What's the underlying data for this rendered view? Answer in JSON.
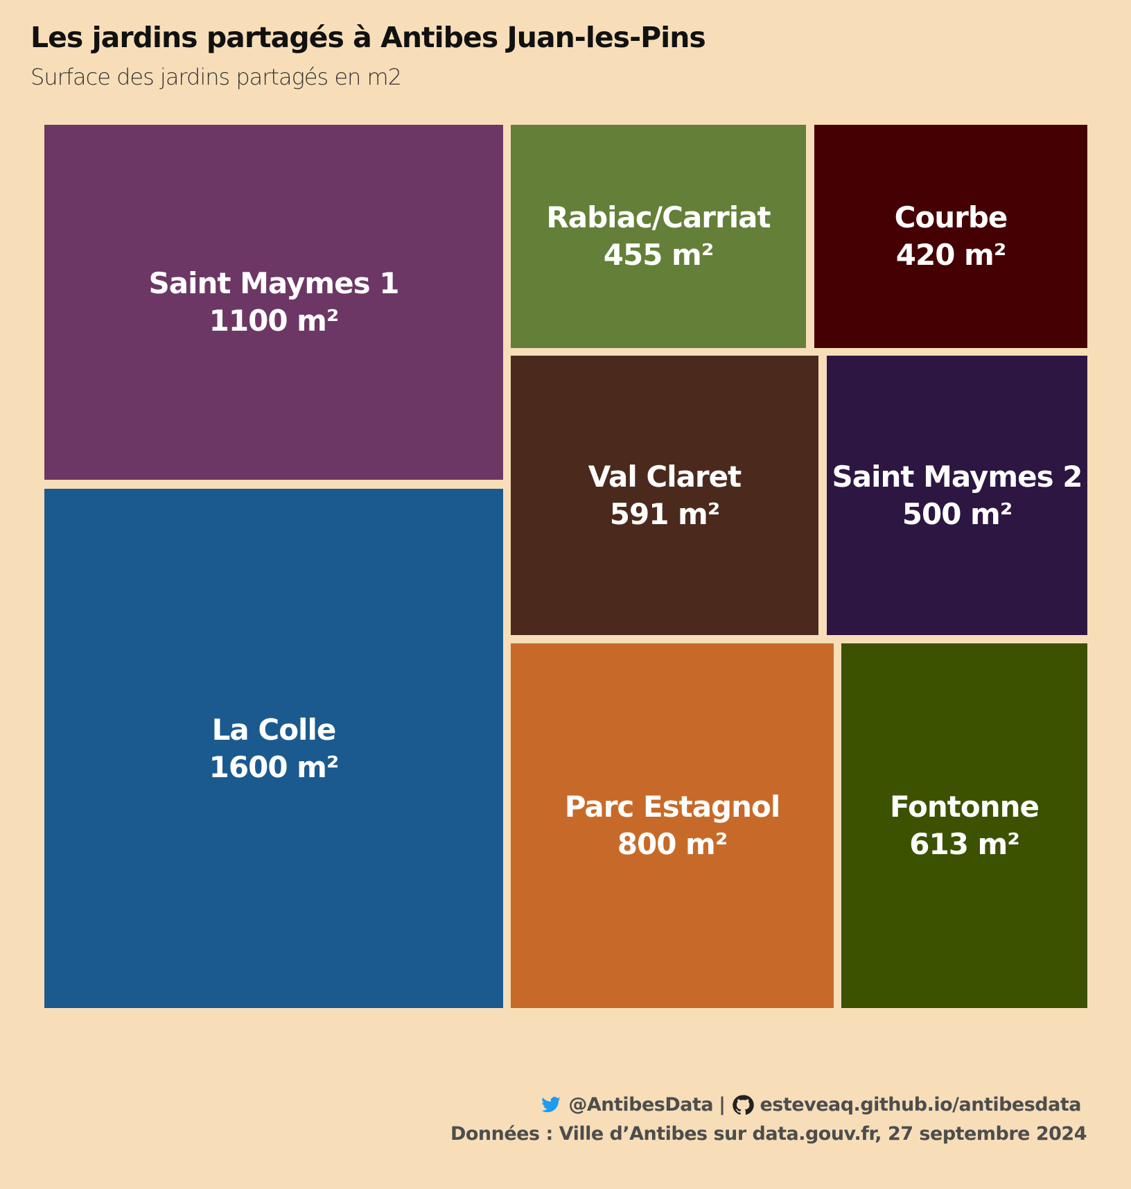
{
  "header": {
    "title": "Les jardins partagés à Antibes Juan-les-Pins",
    "subtitle": "Surface des jardins partagés en m2"
  },
  "chart_data": {
    "type": "treemap",
    "title": "Les jardins partagés à Antibes Juan-les-Pins",
    "subtitle": "Surface des jardins partagés en m2",
    "unit": "m²",
    "items": [
      {
        "name": "La Colle",
        "value": 1600,
        "label": "1600 m²",
        "color": "#1b5a8f"
      },
      {
        "name": "Saint Maymes 1",
        "value": 1100,
        "label": "1100 m²",
        "color": "#6d3765"
      },
      {
        "name": "Parc Estagnol",
        "value": 800,
        "label": "800 m²",
        "color": "#c76a29"
      },
      {
        "name": "Fontonne",
        "value": 613,
        "label": "613 m²",
        "color": "#3c5200"
      },
      {
        "name": "Val Claret",
        "value": 591,
        "label": "591 m²",
        "color": "#4b2a1d"
      },
      {
        "name": "Saint Maymes 2",
        "value": 500,
        "label": "500 m²",
        "color": "#2d1642"
      },
      {
        "name": "Rabiac/Carriat",
        "value": 455,
        "label": "455 m²",
        "color": "#647f38"
      },
      {
        "name": "Courbe",
        "value": 420,
        "label": "420 m²",
        "color": "#450003"
      }
    ]
  },
  "footer": {
    "twitter_icon": "twitter-icon",
    "twitter": "@AntibesData",
    "separator": "|",
    "github_icon": "github-icon",
    "website": "esteveaq.github.io/antibesdata",
    "source": "Données : Ville d’Antibes sur data.gouv.fr, 27 septembre 2024",
    "twitter_color": "#1d9bf0"
  }
}
